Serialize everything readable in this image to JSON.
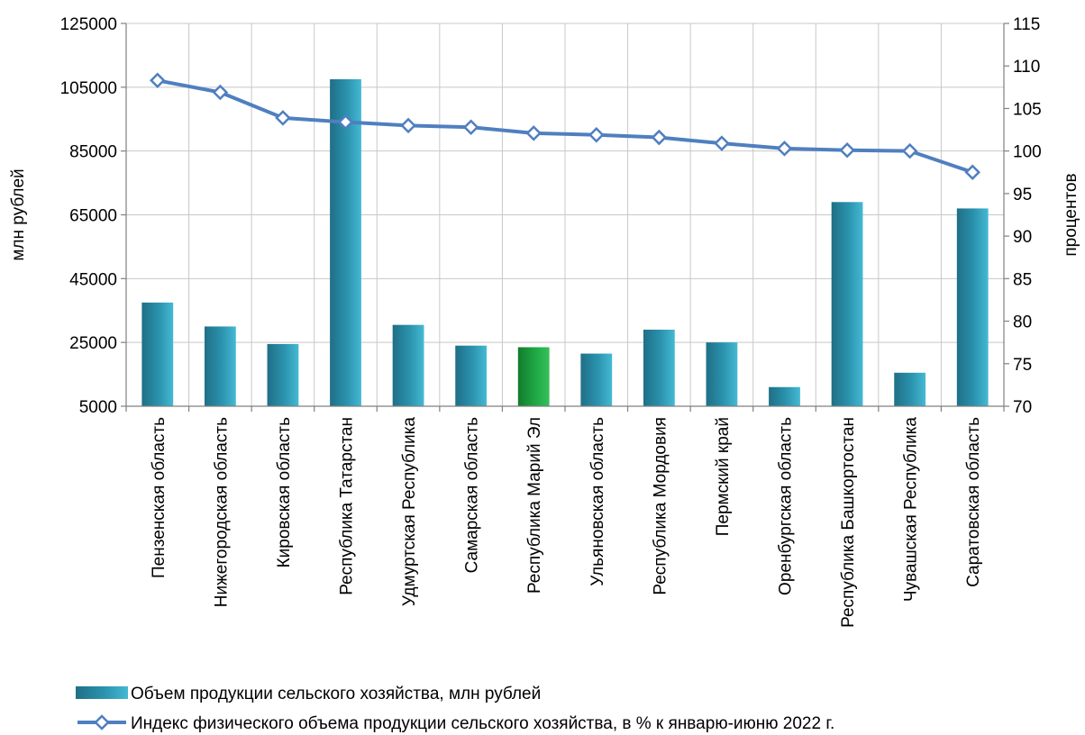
{
  "chart_data": {
    "type": "bar",
    "categories": [
      "Пензенская область",
      "Нижегородская область",
      "Кировская область",
      "Республика Татарстан",
      "Удмуртская Республика",
      "Самарская область",
      "Республика Марий Эл",
      "Ульяновская область",
      "Республика Мордовия",
      "Пермский край",
      "Оренбургская область",
      "Республика Башкортостан",
      "Чувашская Республика",
      "Саратовская область"
    ],
    "series": [
      {
        "name": "Объем продукции сельского хозяйства, млн рублей",
        "type": "bar",
        "axis": "left",
        "values": [
          37500,
          30000,
          24500,
          107500,
          30500,
          24000,
          23500,
          21500,
          29000,
          25000,
          11000,
          69000,
          15500,
          67000
        ],
        "color": "#2a8fa8",
        "highlight_index": 6,
        "highlight_color": "#1a9a3a"
      },
      {
        "name": "Индекс физического объема продукции сельского хозяйства, в % к январю-июню 2022 г.",
        "type": "line",
        "axis": "right",
        "values": [
          108.3,
          106.9,
          103.9,
          103.4,
          103.0,
          102.8,
          102.1,
          101.9,
          101.6,
          100.9,
          100.3,
          100.1,
          100.0,
          97.5
        ],
        "color": "#4f7fc0"
      }
    ],
    "left_axis": {
      "label": "млн рублей",
      "ylim": [
        5000,
        125000
      ],
      "ticks": [
        "5000",
        "25000",
        "45000",
        "65000",
        "85000",
        "105000",
        "125000"
      ]
    },
    "right_axis": {
      "label": "процентов",
      "ylim": [
        70,
        115
      ],
      "ticks": [
        "70",
        "75",
        "80",
        "85",
        "90",
        "95",
        "100",
        "105",
        "110",
        "115"
      ]
    },
    "grid": true,
    "legend": "bottom"
  }
}
